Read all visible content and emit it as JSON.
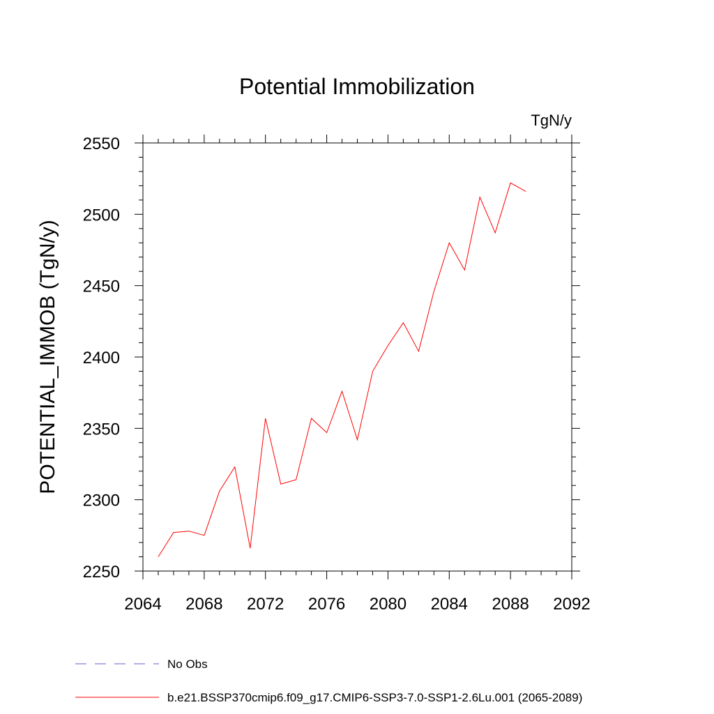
{
  "chart_data": {
    "type": "line",
    "title": "Potential Immobilization",
    "units": "TgN/y",
    "xlabel": "",
    "ylabel": "POTENTIAL_IMMOB  (TgN/y)",
    "xlim": [
      2064,
      2092
    ],
    "ylim": [
      2250,
      2550
    ],
    "x_ticks": [
      2064,
      2068,
      2072,
      2076,
      2080,
      2084,
      2088,
      2092
    ],
    "y_ticks": [
      2250,
      2300,
      2350,
      2400,
      2450,
      2500,
      2550
    ],
    "grid": false,
    "series": [
      {
        "name": "b.e21.BSSP370cmip6.f09_g17.CMIP6-SSP3-7.0-SSP1-2.6Lu.001 (2065-2089)",
        "color": "#ff0000",
        "x": [
          2065,
          2066,
          2067,
          2068,
          2069,
          2070,
          2071,
          2072,
          2073,
          2074,
          2075,
          2076,
          2077,
          2078,
          2079,
          2080,
          2081,
          2082,
          2083,
          2084,
          2085,
          2086,
          2087,
          2088,
          2089
        ],
        "y": [
          2260,
          2277,
          2278,
          2275,
          2306,
          2323,
          2266,
          2357,
          2311,
          2314,
          2357,
          2347,
          2376,
          2342,
          2390,
          2408,
          2424,
          2404,
          2446,
          2480,
          2461,
          2512,
          2487,
          2522,
          2516
        ]
      }
    ],
    "legend": [
      {
        "label": "No Obs",
        "style": "dashed",
        "color": "#6a5acd"
      },
      {
        "label": "b.e21.BSSP370cmip6.f09_g17.CMIP6-SSP3-7.0-SSP1-2.6Lu.001 (2065-2089)",
        "style": "solid",
        "color": "#ff0000"
      }
    ]
  }
}
